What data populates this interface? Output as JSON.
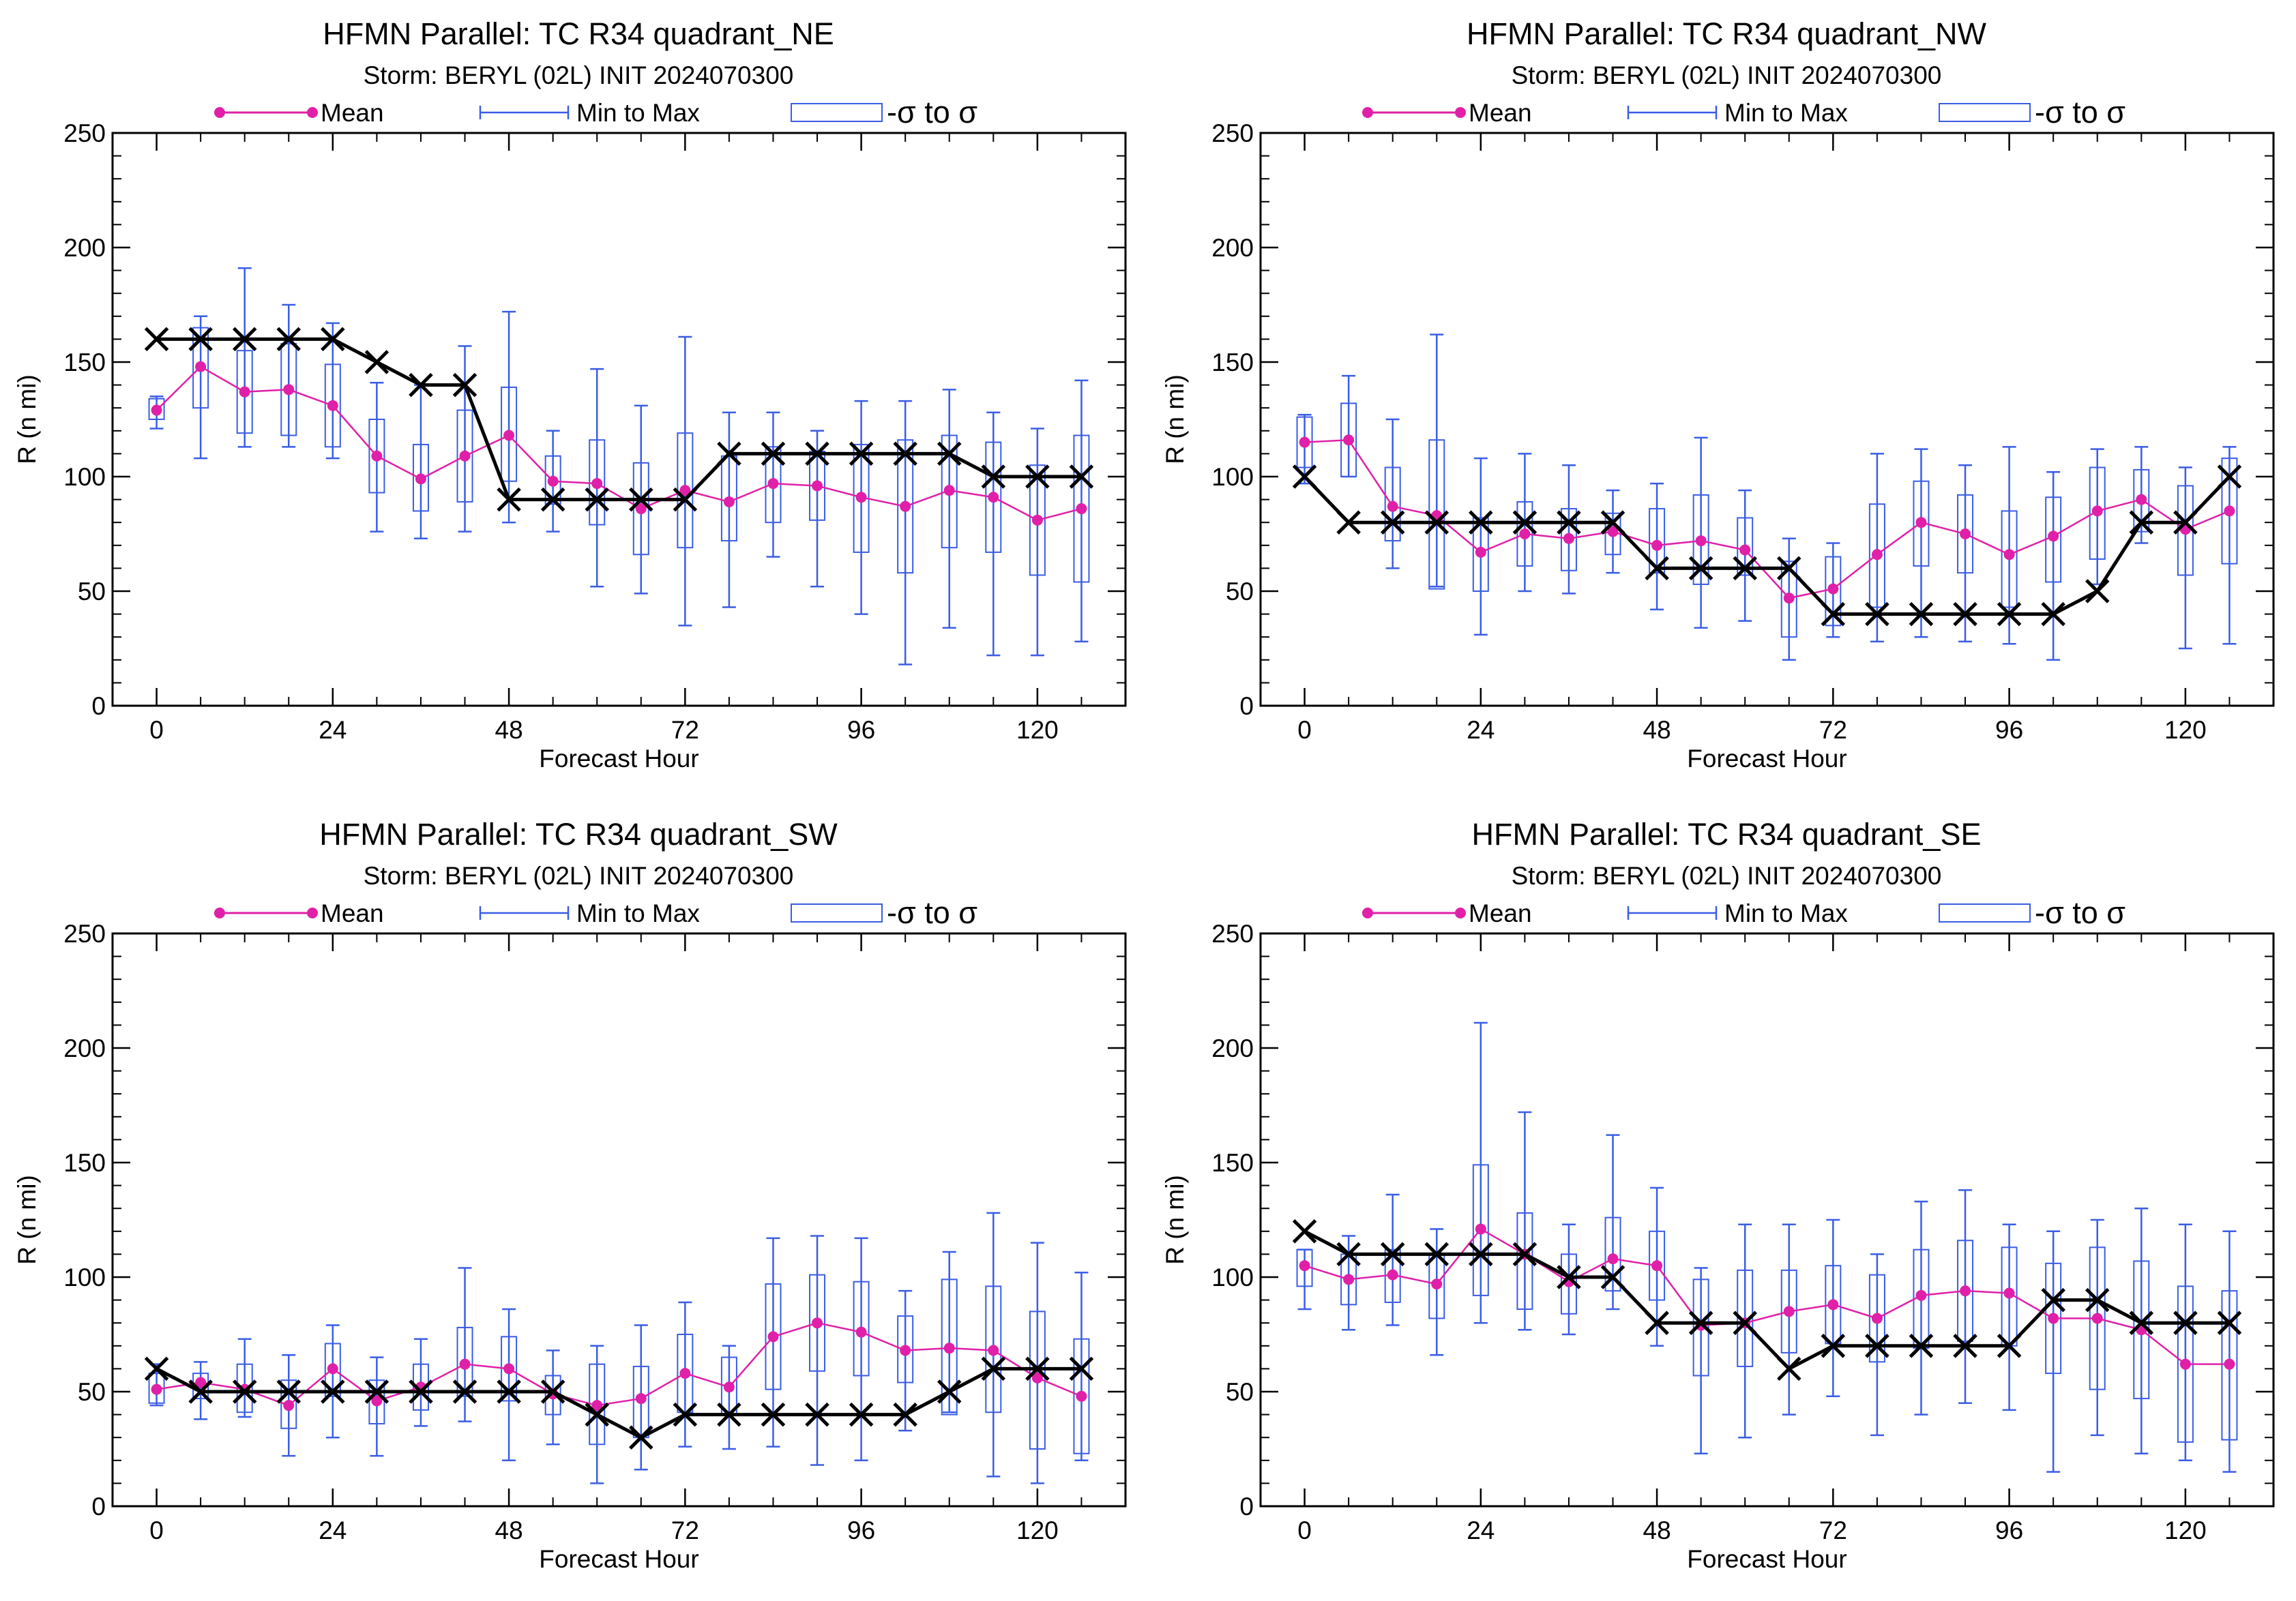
{
  "figure": {
    "colors": {
      "mean": "#e020a8",
      "range": "#3a5de6",
      "best_track": "#000000"
    }
  },
  "chart_data": [
    {
      "type": "box-line",
      "title": "HFMN Parallel: TC  R34 quadrant_NE",
      "subtitle": "Storm: BERYL (02L) INIT 2024070300",
      "legend": {
        "mean": "Mean",
        "range": "Min to Max",
        "sigma": "-σ to σ",
        "placement": "top"
      },
      "xlabel": "Forecast Hour",
      "ylabel": "R (n mi)",
      "xlim": [
        -6,
        132
      ],
      "ylim": [
        0,
        250
      ],
      "xticks": [
        "0",
        "24",
        "48",
        "72",
        "96",
        "120"
      ],
      "yticks": [
        "0",
        "50",
        "100",
        "150",
        "200",
        "250"
      ],
      "x": [
        0,
        6,
        12,
        18,
        24,
        30,
        36,
        42,
        48,
        54,
        60,
        66,
        72,
        78,
        84,
        90,
        96,
        102,
        108,
        114,
        120,
        126
      ],
      "series": [
        {
          "role": "mean",
          "values": [
            129,
            148,
            137,
            138,
            131,
            109,
            99,
            109,
            118,
            98,
            97,
            86,
            94,
            89,
            97,
            96,
            91,
            87,
            94,
            91,
            81,
            86
          ]
        },
        {
          "role": "best_track",
          "values": [
            160,
            160,
            160,
            160,
            160,
            150,
            140,
            140,
            90,
            90,
            90,
            90,
            90,
            110,
            110,
            110,
            110,
            110,
            110,
            100,
            100,
            100
          ]
        },
        {
          "role": "min",
          "values": [
            121,
            108,
            113,
            113,
            108,
            76,
            73,
            76,
            80,
            76,
            52,
            49,
            35,
            43,
            65,
            52,
            40,
            18,
            34,
            22,
            22,
            28
          ]
        },
        {
          "role": "max",
          "values": [
            135,
            170,
            191,
            175,
            167,
            141,
            140,
            157,
            172,
            120,
            147,
            131,
            161,
            128,
            128,
            120,
            133,
            133,
            138,
            128,
            121,
            142
          ]
        },
        {
          "role": "sigma_low",
          "values": [
            125,
            130,
            119,
            118,
            113,
            93,
            85,
            89,
            98,
            88,
            79,
            66,
            69,
            72,
            80,
            81,
            67,
            58,
            69,
            67,
            57,
            54
          ]
        },
        {
          "role": "sigma_high",
          "values": [
            134,
            165,
            155,
            158,
            149,
            125,
            114,
            129,
            139,
            109,
            116,
            106,
            119,
            109,
            113,
            111,
            114,
            116,
            118,
            115,
            105,
            118
          ]
        }
      ]
    },
    {
      "type": "box-line",
      "title": "HFMN Parallel: TC  R34 quadrant_NW",
      "subtitle": "Storm: BERYL (02L) INIT 2024070300",
      "legend": {
        "mean": "Mean",
        "range": "Min to Max",
        "sigma": "-σ to σ",
        "placement": "top"
      },
      "xlabel": "Forecast Hour",
      "ylabel": "R (n mi)",
      "xlim": [
        -6,
        132
      ],
      "ylim": [
        0,
        250
      ],
      "xticks": [
        "0",
        "24",
        "48",
        "72",
        "96",
        "120"
      ],
      "yticks": [
        "0",
        "50",
        "100",
        "150",
        "200",
        "250"
      ],
      "x": [
        0,
        6,
        12,
        18,
        24,
        30,
        36,
        42,
        48,
        54,
        60,
        66,
        72,
        78,
        84,
        90,
        96,
        102,
        108,
        114,
        120,
        126
      ],
      "series": [
        {
          "role": "mean",
          "values": [
            115,
            116,
            87,
            83,
            67,
            75,
            73,
            76,
            70,
            72,
            68,
            47,
            51,
            66,
            80,
            75,
            66,
            74,
            85,
            90,
            77,
            85
          ]
        },
        {
          "role": "best_track",
          "values": [
            100,
            80,
            80,
            80,
            80,
            80,
            80,
            80,
            60,
            60,
            60,
            60,
            40,
            40,
            40,
            40,
            40,
            40,
            50,
            80,
            80,
            100
          ]
        },
        {
          "role": "min",
          "values": [
            97,
            100,
            60,
            52,
            31,
            50,
            49,
            58,
            42,
            34,
            37,
            20,
            30,
            28,
            30,
            28,
            27,
            20,
            53,
            71,
            25,
            27
          ]
        },
        {
          "role": "max",
          "values": [
            127,
            144,
            125,
            162,
            108,
            110,
            105,
            94,
            97,
            117,
            94,
            73,
            71,
            110,
            112,
            105,
            113,
            102,
            112,
            113,
            104,
            113
          ]
        },
        {
          "role": "sigma_low",
          "values": [
            104,
            100,
            72,
            51,
            50,
            61,
            59,
            66,
            58,
            53,
            57,
            30,
            35,
            43,
            61,
            58,
            43,
            54,
            64,
            76,
            57,
            62
          ]
        },
        {
          "role": "sigma_high",
          "values": [
            126,
            132,
            104,
            116,
            82,
            89,
            86,
            84,
            86,
            92,
            82,
            63,
            65,
            88,
            98,
            92,
            85,
            91,
            104,
            103,
            96,
            108
          ]
        }
      ]
    },
    {
      "type": "box-line",
      "title": "HFMN Parallel: TC  R34 quadrant_SW",
      "subtitle": "Storm: BERYL (02L) INIT 2024070300",
      "legend": {
        "mean": "Mean",
        "range": "Min to Max",
        "sigma": "-σ to σ",
        "placement": "top"
      },
      "xlabel": "Forecast Hour",
      "ylabel": "R (n mi)",
      "xlim": [
        -6,
        132
      ],
      "ylim": [
        0,
        250
      ],
      "xticks": [
        "0",
        "24",
        "48",
        "72",
        "96",
        "120"
      ],
      "yticks": [
        "0",
        "50",
        "100",
        "150",
        "200",
        "250"
      ],
      "x": [
        0,
        6,
        12,
        18,
        24,
        30,
        36,
        42,
        48,
        54,
        60,
        66,
        72,
        78,
        84,
        90,
        96,
        102,
        108,
        114,
        120,
        126
      ],
      "series": [
        {
          "role": "mean",
          "values": [
            51,
            54,
            51,
            44,
            60,
            46,
            52,
            62,
            60,
            49,
            44,
            47,
            58,
            52,
            74,
            80,
            76,
            68,
            69,
            68,
            56,
            48
          ]
        },
        {
          "role": "best_track",
          "values": [
            60,
            50,
            50,
            50,
            50,
            50,
            50,
            50,
            50,
            50,
            40,
            30,
            40,
            40,
            40,
            40,
            40,
            40,
            50,
            60,
            60,
            60
          ]
        },
        {
          "role": "min",
          "values": [
            44,
            38,
            39,
            22,
            30,
            22,
            35,
            37,
            20,
            27,
            10,
            16,
            26,
            25,
            26,
            18,
            20,
            33,
            41,
            13,
            10,
            20
          ]
        },
        {
          "role": "max",
          "values": [
            62,
            63,
            73,
            66,
            79,
            65,
            73,
            104,
            86,
            68,
            70,
            79,
            89,
            70,
            117,
            118,
            117,
            94,
            111,
            128,
            115,
            102
          ]
        },
        {
          "role": "sigma_low",
          "values": [
            45,
            47,
            41,
            34,
            48,
            36,
            42,
            48,
            46,
            40,
            27,
            30,
            41,
            40,
            51,
            59,
            57,
            54,
            40,
            41,
            25,
            23
          ]
        },
        {
          "role": "sigma_high",
          "values": [
            58,
            58,
            62,
            55,
            71,
            55,
            62,
            78,
            74,
            57,
            62,
            61,
            75,
            65,
            97,
            101,
            98,
            83,
            99,
            96,
            85,
            73
          ]
        }
      ]
    },
    {
      "type": "box-line",
      "title": "HFMN Parallel: TC  R34 quadrant_SE",
      "subtitle": "Storm: BERYL (02L) INIT 2024070300",
      "legend": {
        "mean": "Mean",
        "range": "Min to Max",
        "sigma": "-σ to σ",
        "placement": "top"
      },
      "xlabel": "Forecast Hour",
      "ylabel": "R (n mi)",
      "xlim": [
        -6,
        132
      ],
      "ylim": [
        0,
        250
      ],
      "xticks": [
        "0",
        "24",
        "48",
        "72",
        "96",
        "120"
      ],
      "yticks": [
        "0",
        "50",
        "100",
        "150",
        "200",
        "250"
      ],
      "x": [
        0,
        6,
        12,
        18,
        24,
        30,
        36,
        42,
        48,
        54,
        60,
        66,
        72,
        78,
        84,
        90,
        96,
        102,
        108,
        114,
        120,
        126
      ],
      "series": [
        {
          "role": "mean",
          "values": [
            105,
            99,
            101,
            97,
            121,
            110,
            98,
            108,
            105,
            79,
            80,
            85,
            88,
            82,
            92,
            94,
            93,
            82,
            82,
            77,
            62,
            62
          ]
        },
        {
          "role": "best_track",
          "values": [
            120,
            110,
            110,
            110,
            110,
            110,
            100,
            100,
            80,
            80,
            80,
            60,
            70,
            70,
            70,
            70,
            70,
            90,
            90,
            80,
            80,
            80
          ]
        },
        {
          "role": "min",
          "values": [
            86,
            77,
            79,
            66,
            80,
            77,
            75,
            86,
            70,
            23,
            30,
            40,
            48,
            31,
            40,
            45,
            42,
            15,
            31,
            23,
            20,
            15
          ]
        },
        {
          "role": "max",
          "values": [
            112,
            118,
            136,
            121,
            211,
            172,
            123,
            162,
            139,
            104,
            123,
            123,
            125,
            110,
            133,
            138,
            123,
            120,
            125,
            130,
            123,
            120
          ]
        },
        {
          "role": "sigma_low",
          "values": [
            96,
            88,
            89,
            82,
            92,
            86,
            84,
            94,
            90,
            57,
            61,
            67,
            71,
            63,
            69,
            72,
            70,
            58,
            51,
            47,
            28,
            29
          ]
        },
        {
          "role": "sigma_high",
          "values": [
            112,
            110,
            112,
            110,
            149,
            128,
            110,
            126,
            120,
            99,
            103,
            103,
            105,
            101,
            112,
            116,
            113,
            106,
            113,
            107,
            96,
            94
          ]
        }
      ]
    }
  ]
}
